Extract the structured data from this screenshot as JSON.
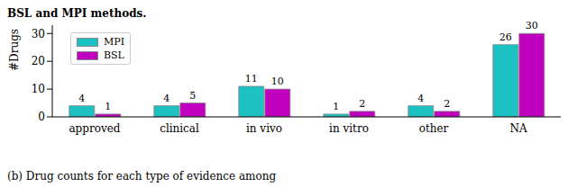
{
  "chart_data": {
    "type": "bar",
    "annotations": [
      "BSL and MPI methods.",
      "(b) Drug counts for each type of evidence among"
    ],
    "y_label": "#Drugs",
    "categories": [
      "approved",
      "clinical",
      "in vivo",
      "in vitro",
      "other",
      "NA"
    ],
    "series": [
      {
        "name": "MPI",
        "color": "#1cc2c2",
        "values": [
          4,
          4,
          11,
          1,
          4,
          26
        ]
      },
      {
        "name": "BSL",
        "color": "#bf00bf",
        "values": [
          1,
          5,
          10,
          2,
          2,
          30
        ]
      }
    ],
    "ylim": [
      0,
      33
    ],
    "yticks": [
      0,
      10,
      20,
      30
    ],
    "data_labels": true,
    "legend": "upper left",
    "grid": false
  }
}
